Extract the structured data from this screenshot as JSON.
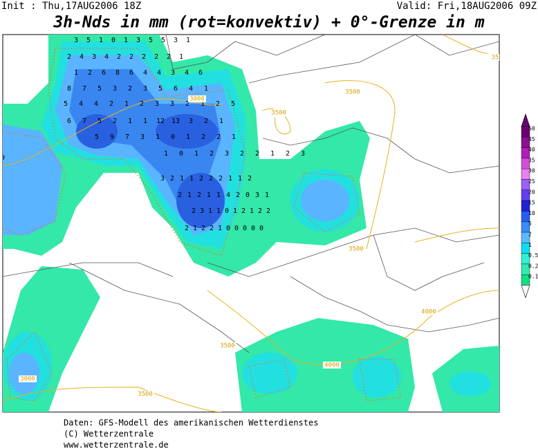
{
  "header": {
    "init": "Init : Thu,17AUG2006 18Z",
    "valid": "Valid: Fri,18AUG2006 09Z",
    "title": "3h-Nds in mm (rot=konvektiv) + 0°-Grenze in m"
  },
  "legend": {
    "levels": [
      50,
      45,
      40,
      35,
      30,
      25,
      20,
      15,
      10,
      5,
      2,
      1,
      0.5,
      0.2,
      0.1
    ],
    "colors": [
      "#6a0070",
      "#8c1090",
      "#b020b8",
      "#d050d8",
      "#e880f0",
      "#9a60f8",
      "#6040f0",
      "#2020d8",
      "#2a5cf0",
      "#3a8cf8",
      "#5cb8ff",
      "#10dcf0",
      "#30f0d8",
      "#30eab0",
      "#10e080"
    ]
  },
  "contour_labels": [
    "3000",
    "3500",
    "3500",
    "3500",
    "4000",
    "3500",
    "4000",
    "3000",
    "3500",
    "35"
  ],
  "precip_values": [
    3,
    5,
    1,
    0,
    1,
    3,
    5,
    5,
    3,
    1,
    2,
    4,
    3,
    4,
    2,
    2,
    2,
    2,
    2,
    1,
    1,
    2,
    6,
    8,
    6,
    4,
    4,
    3,
    4,
    6,
    8,
    7,
    5,
    3,
    2,
    3,
    5,
    6,
    4,
    1,
    5,
    4,
    4,
    2,
    1,
    2,
    3,
    3,
    2,
    1,
    2,
    5,
    6,
    7,
    5,
    2,
    1,
    1,
    12,
    13,
    3,
    2,
    1,
    5,
    9,
    7,
    3,
    1,
    0,
    1,
    2,
    2,
    1,
    1,
    0,
    1,
    2,
    3,
    2,
    2,
    1,
    2,
    3,
    3,
    2,
    1,
    1,
    2,
    2,
    2,
    1,
    1,
    2,
    2,
    1,
    2,
    1,
    1,
    4,
    2,
    0,
    3,
    1,
    2,
    3,
    1,
    1,
    0,
    1,
    2,
    1,
    2,
    2,
    2,
    1,
    2,
    2,
    1,
    0,
    0,
    0,
    0,
    0,
    0
  ],
  "footer": [
    "Daten: GFS-Modell des amerikanischen Wetterdienstes",
    "(C) Wetterzentrale",
    "www.wetterzentrale.de"
  ]
}
